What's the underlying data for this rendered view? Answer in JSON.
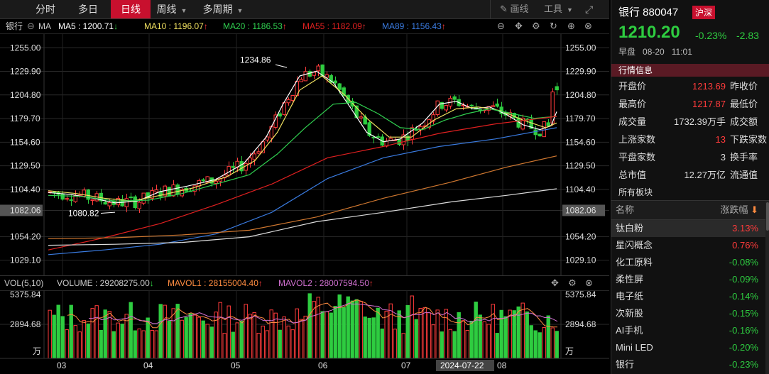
{
  "tabs": [
    {
      "label": "分时",
      "active": false
    },
    {
      "label": "多日",
      "active": false
    },
    {
      "label": "日线",
      "active": true
    },
    {
      "label": "周线",
      "active": false
    },
    {
      "label": "多周期",
      "active": false
    }
  ],
  "toolbar": {
    "draw_label": "画线",
    "tools_label": "工具"
  },
  "ma_legend": {
    "stock": "银行",
    "ma": "MA",
    "ma5": "MA5 : 1200.71",
    "ma10": "MA10 : 1196.07",
    "ma20": "MA20 : 1186.53",
    "ma55": "MA55 : 1182.09",
    "ma89": "MA89 : 1156.43",
    "ma5_arrow": "↓",
    "ma10_arrow": "↑",
    "ma20_arrow": "↑",
    "ma55_arrow": "↑",
    "ma89_arrow": "↑"
  },
  "colors": {
    "up": "#ff3b3b",
    "down": "#2ecc40",
    "ma5": "#ffffff",
    "ma10": "#f0e060",
    "ma20": "#30d050",
    "ma55": "#e02020",
    "ma89": "#3a7be0",
    "ma_long1": "#d07830",
    "ma_long2": "#dddddd",
    "mavol1": "#ff8c40",
    "mavol2": "#d070d0"
  },
  "chart_data": [
    {
      "type": "candlestick",
      "yticks": [
        "1255.00",
        "1229.90",
        "1204.80",
        "1179.70",
        "1154.60",
        "1129.50",
        "1104.40",
        "1082.06",
        "1054.20",
        "1029.10"
      ],
      "ylim": [
        1016,
        1265
      ],
      "x_months": [
        "03",
        "04",
        "05",
        "06",
        "07",
        "08"
      ],
      "highlight_date": "2024-07-22",
      "annotations": [
        {
          "text": "1234.86",
          "kind": "high"
        },
        {
          "text": "1080.82",
          "kind": "low"
        }
      ],
      "current_line": "1082.06",
      "ohlc": [],
      "ma_lines": {
        "ma5": [
          [
            0,
            1101
          ],
          [
            20,
            1099
          ],
          [
            40,
            1095
          ],
          [
            60,
            1090
          ],
          [
            80,
            1092
          ],
          [
            100,
            1102
          ],
          [
            125,
            1108
          ],
          [
            150,
            1115
          ],
          [
            175,
            1132
          ],
          [
            195,
            1160
          ],
          [
            210,
            1195
          ],
          [
            225,
            1225
          ],
          [
            240,
            1230
          ],
          [
            255,
            1218
          ],
          [
            270,
            1192
          ],
          [
            285,
            1165
          ],
          [
            300,
            1155
          ],
          [
            315,
            1158
          ],
          [
            335,
            1175
          ],
          [
            350,
            1195
          ],
          [
            365,
            1198
          ],
          [
            380,
            1190
          ],
          [
            395,
            1192
          ],
          [
            410,
            1184
          ],
          [
            425,
            1173
          ],
          [
            440,
            1168
          ],
          [
            450,
            1172
          ],
          [
            455,
            1187
          ]
        ],
        "ma10": [
          [
            0,
            1103
          ],
          [
            25,
            1100
          ],
          [
            50,
            1095
          ],
          [
            75,
            1092
          ],
          [
            100,
            1098
          ],
          [
            130,
            1106
          ],
          [
            160,
            1118
          ],
          [
            185,
            1135
          ],
          [
            205,
            1165
          ],
          [
            225,
            1210
          ],
          [
            245,
            1225
          ],
          [
            265,
            1205
          ],
          [
            285,
            1180
          ],
          [
            305,
            1160
          ],
          [
            325,
            1160
          ],
          [
            345,
            1178
          ],
          [
            365,
            1190
          ],
          [
            385,
            1192
          ],
          [
            405,
            1188
          ],
          [
            425,
            1178
          ],
          [
            445,
            1170
          ],
          [
            455,
            1175
          ]
        ],
        "ma20": [
          [
            0,
            1098
          ],
          [
            30,
            1097
          ],
          [
            60,
            1092
          ],
          [
            90,
            1093
          ],
          [
            120,
            1100
          ],
          [
            150,
            1110
          ],
          [
            180,
            1120
          ],
          [
            205,
            1142
          ],
          [
            230,
            1170
          ],
          [
            255,
            1195
          ],
          [
            275,
            1197
          ],
          [
            295,
            1185
          ],
          [
            315,
            1170
          ],
          [
            335,
            1168
          ],
          [
            355,
            1178
          ],
          [
            375,
            1185
          ],
          [
            395,
            1190
          ],
          [
            415,
            1185
          ],
          [
            435,
            1180
          ],
          [
            455,
            1182
          ]
        ],
        "ma55": [
          [
            0,
            1040
          ],
          [
            50,
            1053
          ],
          [
            100,
            1068
          ],
          [
            150,
            1088
          ],
          [
            200,
            1110
          ],
          [
            250,
            1138
          ],
          [
            300,
            1150
          ],
          [
            350,
            1164
          ],
          [
            400,
            1174
          ],
          [
            455,
            1182
          ]
        ],
        "ma89": [
          [
            0,
            1035
          ],
          [
            50,
            1040
          ],
          [
            100,
            1046
          ],
          [
            150,
            1057
          ],
          [
            200,
            1080
          ],
          [
            250,
            1116
          ],
          [
            300,
            1138
          ],
          [
            350,
            1150
          ],
          [
            400,
            1158
          ],
          [
            455,
            1170
          ]
        ],
        "ma_long1": [
          [
            0,
            1052
          ],
          [
            60,
            1053
          ],
          [
            120,
            1056
          ],
          [
            180,
            1061
          ],
          [
            240,
            1075
          ],
          [
            300,
            1095
          ],
          [
            360,
            1112
          ],
          [
            410,
            1128
          ],
          [
            455,
            1140
          ]
        ],
        "ma_long2": [
          [
            0,
            1045
          ],
          [
            60,
            1046
          ],
          [
            120,
            1048
          ],
          [
            180,
            1054
          ],
          [
            240,
            1070
          ],
          [
            300,
            1080
          ],
          [
            360,
            1091
          ],
          [
            410,
            1098
          ],
          [
            455,
            1105
          ]
        ]
      }
    },
    {
      "type": "bar",
      "title": "VOL(5,10)",
      "volume": "VOLUME : 29208275.00",
      "mavol1": "MAVOL1 : 28155004.40",
      "mavol2": "MAVOL2 : 28007594.50",
      "volume_arrow": "↓",
      "mavol1_arrow": "↑",
      "mavol2_arrow": "↑",
      "yticks": [
        "5375.84",
        "2894.68"
      ],
      "unit": "万"
    }
  ],
  "quote": {
    "name_code": "银行 880047",
    "market_badge": "沪深",
    "price": "1210.20",
    "pct": "-0.23%",
    "chg": "-2.83",
    "session": "早盘",
    "date": "08-20",
    "time": "11:01",
    "section_title": "行情信息",
    "rows": [
      {
        "k1": "开盘价",
        "v1": "1213.69",
        "c": "up",
        "k2": "昨收价"
      },
      {
        "k1": "最高价",
        "v1": "1217.87",
        "c": "up",
        "k2": "最低价"
      },
      {
        "k1": "成交量",
        "v1": "1732.39万手",
        "c": "plain",
        "k2": "成交额"
      },
      {
        "k1": "上涨家数",
        "v1": "13",
        "c": "up",
        "k2": "下跌家数"
      },
      {
        "k1": "平盘家数",
        "v1": "3",
        "c": "plain",
        "k2": "换手率"
      },
      {
        "k1": "总市值",
        "v1": "12.27万亿",
        "c": "plain",
        "k2": "流通值"
      }
    ],
    "boards_title": "所有板块",
    "boards_hdr_name": "名称",
    "boards_hdr_val": "涨跌幅",
    "boards": [
      {
        "name": "钛白粉",
        "val": "3.13%",
        "c": "up",
        "sel": true
      },
      {
        "name": "星闪概念",
        "val": "0.76%",
        "c": "up",
        "sel": false
      },
      {
        "name": "化工原料",
        "val": "-0.08%",
        "c": "down",
        "sel": false
      },
      {
        "name": "柔性屏",
        "val": "-0.09%",
        "c": "down",
        "sel": false
      },
      {
        "name": "电子纸",
        "val": "-0.14%",
        "c": "down",
        "sel": false
      },
      {
        "name": "次新股",
        "val": "-0.15%",
        "c": "down",
        "sel": false
      },
      {
        "name": "AI手机",
        "val": "-0.16%",
        "c": "down",
        "sel": false
      },
      {
        "name": "Mini LED",
        "val": "-0.20%",
        "c": "down",
        "sel": false
      },
      {
        "name": "银行",
        "val": "-0.23%",
        "c": "down",
        "sel": false
      }
    ]
  }
}
